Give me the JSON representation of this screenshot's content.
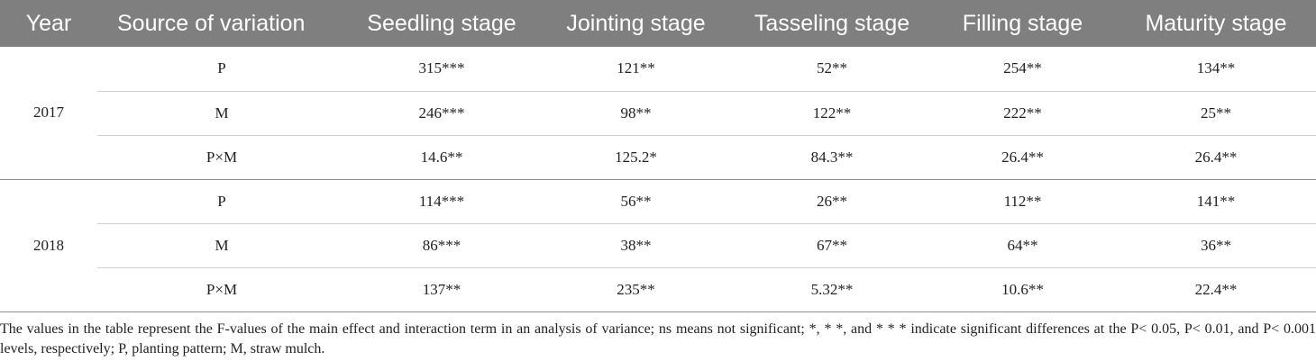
{
  "table": {
    "headers": [
      "Year",
      "Source of variation",
      "Seedling stage",
      "Jointing stage",
      "Tasseling stage",
      "Filling stage",
      "Maturity stage"
    ],
    "groups": [
      {
        "year": "2017",
        "rows": [
          {
            "source": "P",
            "values": [
              "315***",
              "121**",
              "52**",
              "254**",
              "134**"
            ]
          },
          {
            "source": "M",
            "values": [
              "246***",
              "98**",
              "122**",
              "222**",
              "25**"
            ]
          },
          {
            "source": "P×M",
            "values": [
              "14.6**",
              "125.2*",
              "84.3**",
              "26.4**",
              "26.4**"
            ]
          }
        ]
      },
      {
        "year": "2018",
        "rows": [
          {
            "source": "P",
            "values": [
              "114***",
              "56**",
              "26**",
              "112**",
              "141**"
            ]
          },
          {
            "source": "M",
            "values": [
              "86***",
              "38**",
              "67**",
              "64**",
              "36**"
            ]
          },
          {
            "source": "P×M",
            "values": [
              "137**",
              "235**",
              "5.32**",
              "10.6**",
              "22.4**"
            ]
          }
        ]
      }
    ]
  },
  "footnote": "The values in the table represent the F-values of the main effect and interaction term in an analysis of variance; ns means not significant; *, * *, and * * * indicate significant differences at the P< 0.05, P< 0.01, and P< 0.001 levels, respectively; P, planting pattern; M, straw mulch.",
  "colors": {
    "header_bg": "#7f7f7f",
    "header_text": "#ffffff"
  }
}
